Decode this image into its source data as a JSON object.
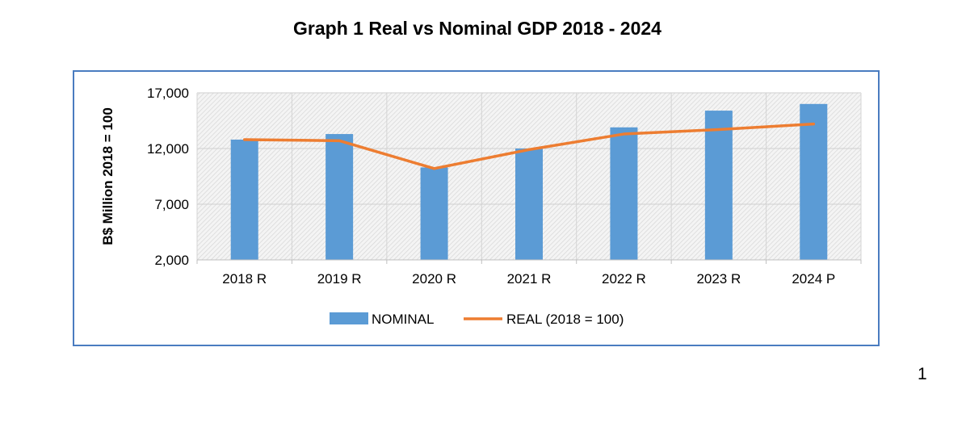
{
  "chart_data": {
    "type": "bar",
    "title": "Graph 1 Real vs Nominal GDP 2018 - 2024",
    "xlabel": "",
    "ylabel": "B$ Million 2018 = 100",
    "ylim": [
      2000,
      17000
    ],
    "yticks": [
      2000,
      7000,
      12000,
      17000
    ],
    "ytick_labels": [
      "2,000",
      "7,000",
      "12,000",
      "17,000"
    ],
    "categories": [
      "2018 R",
      "2019 R",
      "2020 R",
      "2021 R",
      "2022 R",
      "2023 R",
      "2024 P"
    ],
    "series": [
      {
        "name": "NOMINAL",
        "type": "bar",
        "color": "#5b9bd5",
        "values": [
          12800,
          13300,
          10300,
          12000,
          13900,
          15400,
          16000
        ]
      },
      {
        "name": "REAL (2018 = 100)",
        "type": "line",
        "color": "#ed7d31",
        "values": [
          12800,
          12700,
          10200,
          11900,
          13300,
          13700,
          14200
        ]
      }
    ],
    "grid": true,
    "legend_position": "bottom"
  },
  "page_number": "1"
}
